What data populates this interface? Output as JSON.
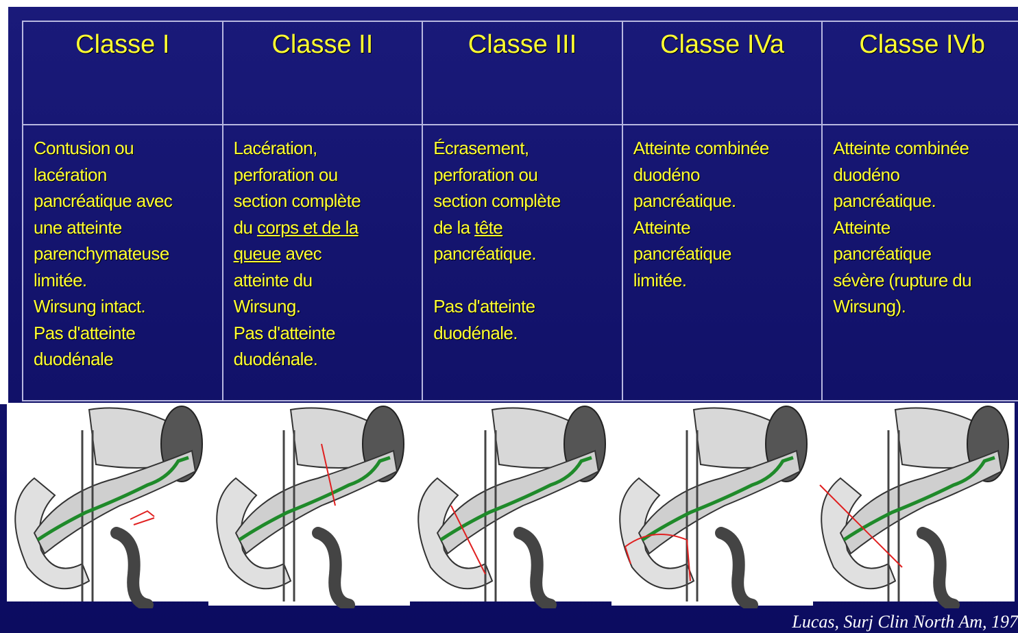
{
  "table": {
    "columns": [
      {
        "header": "Classe I",
        "paragraphs": [
          [
            "Contusion ou",
            "lacération",
            "pancréatique avec",
            "une atteinte",
            "parenchymateuse",
            "limitée.",
            "Wirsung intact.",
            "Pas d'atteinte",
            "duodénale"
          ]
        ]
      },
      {
        "header": "Classe II",
        "paragraphs": [
          [
            "Lacération,",
            "perforation ou",
            "section complète",
            [
              "du ",
              {
                "text": "corps et de la",
                "underline": true
              }
            ],
            [
              {
                "text": "queue",
                "underline": true
              },
              " avec"
            ],
            "atteinte du",
            "Wirsung.",
            "Pas d'atteinte",
            "duodénale."
          ]
        ]
      },
      {
        "header": "Classe III",
        "paragraphs": [
          [
            "Écrasement,",
            "perforation ou",
            "section complète",
            [
              "de la ",
              {
                "text": "tête",
                "underline": true
              }
            ],
            "pancréatique."
          ],
          [
            "Pas d'atteinte",
            "duodénale."
          ]
        ]
      },
      {
        "header": "Classe IVa",
        "paragraphs": [
          [
            "Atteinte combinée",
            "duodéno",
            "pancréatique.",
            "Atteinte",
            "pancréatique",
            "limitée."
          ]
        ]
      },
      {
        "header": "Classe IVb",
        "paragraphs": [
          [
            "Atteinte combinée",
            "duodéno",
            "pancréatique.",
            "Atteinte",
            "pancréatique",
            "sévère (rupture du",
            "Wirsung)."
          ]
        ]
      }
    ]
  },
  "citation": "Lucas, Surj Clin North Am, 197"
}
